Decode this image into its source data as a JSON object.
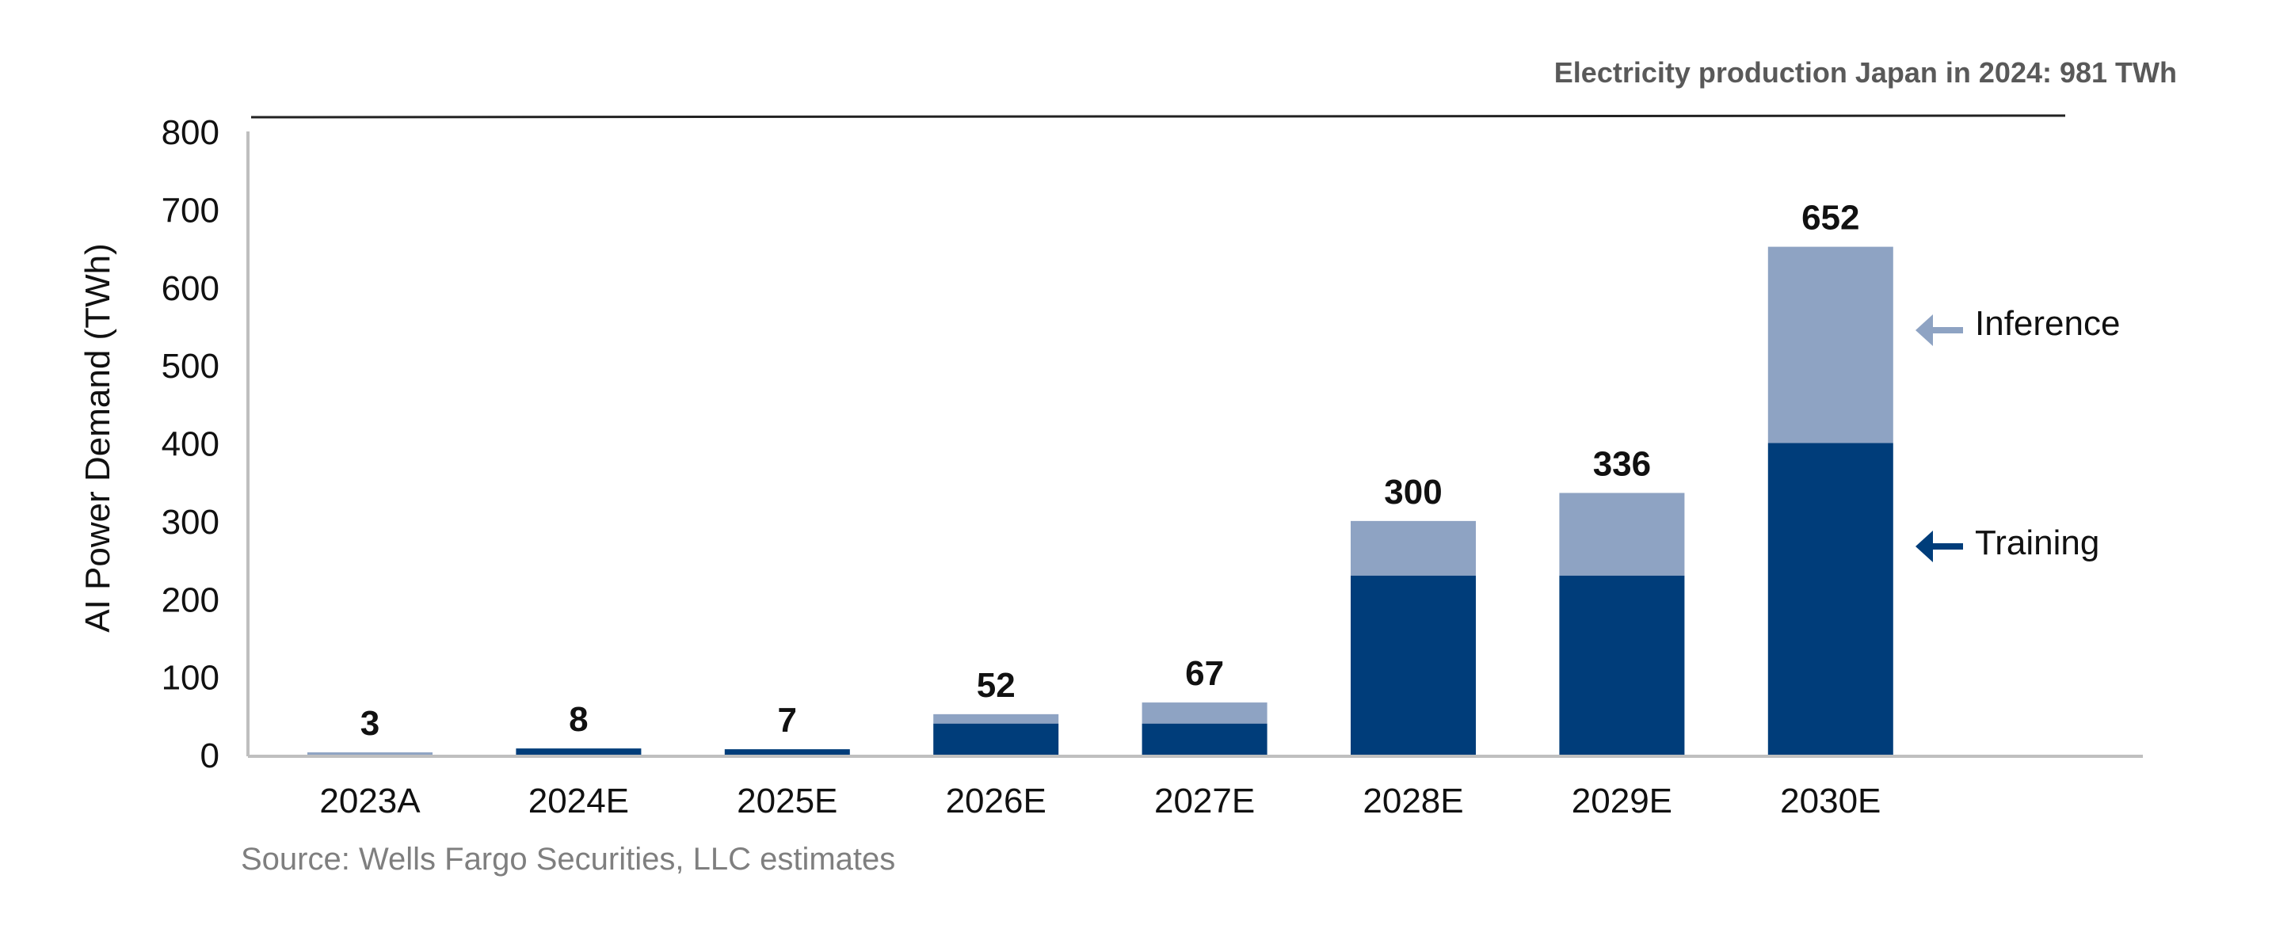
{
  "chart_data": {
    "type": "bar",
    "stacked": true,
    "title": "Electricity production Japan in 2024: 981 TWh",
    "reference_line": {
      "label": "Electricity production Japan in 2024: 981 TWh",
      "value": 981
    },
    "xlabel": "",
    "ylabel": "AI Power Demand (TWh)",
    "ylim": [
      0,
      800
    ],
    "yticks": [
      "0",
      "100",
      "200",
      "300",
      "400",
      "500",
      "600",
      "700",
      "800"
    ],
    "categories": [
      "2023A",
      "2024E",
      "2025E",
      "2026E",
      "2027E",
      "2028E",
      "2029E",
      "2030E"
    ],
    "series": [
      {
        "name": "Training",
        "color": "#003d7a",
        "values": [
          0,
          8,
          7,
          40,
          40,
          230,
          230,
          400
        ]
      },
      {
        "name": "Inference",
        "color": "#8ea3c3",
        "values": [
          3,
          0,
          0,
          12,
          27,
          70,
          106,
          252
        ]
      }
    ],
    "totals": [
      "3",
      "8",
      "7",
      "52",
      "67",
      "300",
      "336",
      "652"
    ],
    "legend": {
      "placement": "right",
      "items": [
        "Inference",
        "Training"
      ]
    },
    "grid": false,
    "source": "Source: Wells Fargo Securities, LLC estimates"
  }
}
